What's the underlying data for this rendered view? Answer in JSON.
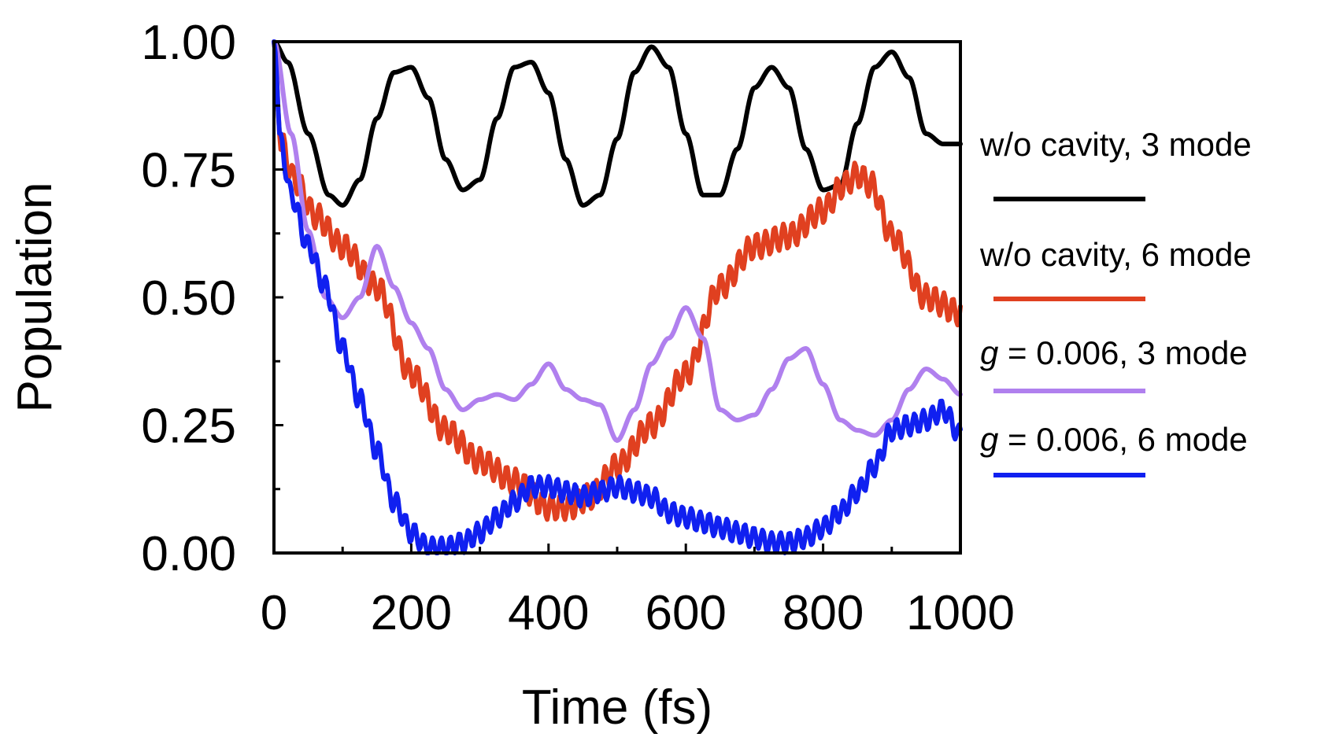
{
  "chart_data": {
    "type": "line",
    "title": "",
    "xlabel": "Time (fs)",
    "ylabel": "Population",
    "xlim": [
      0,
      1000
    ],
    "ylim": [
      0,
      1
    ],
    "x_ticks": [
      0,
      200,
      400,
      600,
      800,
      1000
    ],
    "y_ticks": [
      0,
      0.25,
      0.5,
      0.75,
      1.0
    ],
    "x_tick_labels": [
      "0",
      "200",
      "400",
      "600",
      "800",
      "1000"
    ],
    "y_tick_labels": [
      "0.00",
      "0.25",
      "0.50",
      "0.75",
      "1.00"
    ],
    "minor_x_ticks": [
      100,
      300,
      500,
      700,
      900
    ],
    "minor_y_ticks": [
      0.125,
      0.375,
      0.625,
      0.875
    ],
    "grid": false,
    "legend_position": "right",
    "series": [
      {
        "name": "w/o cavity, 3 mode",
        "legend_prefix": "",
        "legend_text": "w/o cavity, 3 mode",
        "color": "#000000",
        "oscillation": 0,
        "x": [
          0,
          20,
          50,
          80,
          100,
          125,
          150,
          175,
          200,
          225,
          250,
          275,
          300,
          325,
          350,
          375,
          400,
          425,
          450,
          475,
          500,
          525,
          550,
          575,
          600,
          625,
          650,
          675,
          700,
          725,
          750,
          775,
          800,
          825,
          850,
          875,
          900,
          925,
          950,
          975,
          1000
        ],
        "y": [
          1.0,
          0.96,
          0.82,
          0.7,
          0.68,
          0.73,
          0.85,
          0.94,
          0.95,
          0.89,
          0.77,
          0.71,
          0.73,
          0.85,
          0.95,
          0.96,
          0.9,
          0.77,
          0.68,
          0.7,
          0.81,
          0.94,
          0.99,
          0.95,
          0.82,
          0.7,
          0.7,
          0.79,
          0.91,
          0.95,
          0.91,
          0.79,
          0.71,
          0.72,
          0.84,
          0.95,
          0.98,
          0.93,
          0.82,
          0.8,
          0.8
        ]
      },
      {
        "name": "w/o cavity, 6 mode",
        "legend_prefix": "",
        "legend_text": "w/o cavity, 6 mode",
        "color": "#e04020",
        "oscillation": 0.025,
        "x": [
          0,
          10,
          30,
          60,
          100,
          150,
          200,
          250,
          300,
          350,
          400,
          430,
          460,
          500,
          550,
          600,
          650,
          700,
          750,
          800,
          830,
          850,
          870,
          900,
          950,
          1000
        ],
        "y": [
          1.0,
          0.8,
          0.73,
          0.66,
          0.6,
          0.52,
          0.35,
          0.24,
          0.18,
          0.14,
          0.09,
          0.09,
          0.11,
          0.17,
          0.25,
          0.35,
          0.52,
          0.6,
          0.62,
          0.67,
          0.72,
          0.74,
          0.72,
          0.62,
          0.5,
          0.47
        ]
      },
      {
        "name": "g = 0.006, 3 mode",
        "legend_prefix": "g",
        "legend_text": " = 0.006, 3 mode",
        "color": "#b080ee",
        "oscillation": 0,
        "x": [
          0,
          25,
          50,
          75,
          100,
          125,
          150,
          175,
          200,
          225,
          250,
          275,
          300,
          325,
          350,
          375,
          400,
          425,
          450,
          475,
          500,
          525,
          550,
          575,
          600,
          625,
          650,
          675,
          700,
          725,
          750,
          775,
          800,
          825,
          850,
          875,
          900,
          925,
          950,
          975,
          1000
        ],
        "y": [
          1.0,
          0.82,
          0.63,
          0.5,
          0.46,
          0.5,
          0.6,
          0.52,
          0.45,
          0.4,
          0.32,
          0.28,
          0.3,
          0.31,
          0.3,
          0.33,
          0.37,
          0.32,
          0.3,
          0.29,
          0.22,
          0.28,
          0.37,
          0.42,
          0.48,
          0.42,
          0.28,
          0.26,
          0.27,
          0.32,
          0.38,
          0.4,
          0.33,
          0.26,
          0.24,
          0.23,
          0.26,
          0.32,
          0.36,
          0.34,
          0.31
        ]
      },
      {
        "name": "g = 0.006, 6 mode",
        "legend_prefix": "g",
        "legend_text": " = 0.006, 6 mode",
        "color": "#1020f0",
        "oscillation": 0.02,
        "x": [
          0,
          10,
          25,
          50,
          75,
          100,
          125,
          150,
          175,
          200,
          225,
          250,
          275,
          300,
          325,
          350,
          375,
          400,
          425,
          450,
          475,
          500,
          525,
          550,
          575,
          600,
          625,
          650,
          675,
          700,
          725,
          750,
          775,
          800,
          825,
          850,
          875,
          900,
          925,
          950,
          975,
          1000
        ],
        "y": [
          1.0,
          0.8,
          0.7,
          0.6,
          0.52,
          0.4,
          0.3,
          0.2,
          0.1,
          0.04,
          0.01,
          0.01,
          0.02,
          0.04,
          0.07,
          0.1,
          0.13,
          0.13,
          0.12,
          0.11,
          0.12,
          0.13,
          0.12,
          0.11,
          0.08,
          0.07,
          0.06,
          0.05,
          0.04,
          0.03,
          0.02,
          0.02,
          0.03,
          0.05,
          0.08,
          0.12,
          0.17,
          0.24,
          0.25,
          0.26,
          0.28,
          0.23
        ]
      }
    ]
  }
}
